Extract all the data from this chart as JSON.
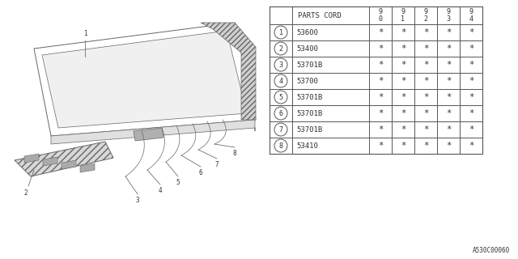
{
  "bg_color": "#ffffff",
  "diagram_code": "A530C00060",
  "table": {
    "header_col": "PARTS CORD",
    "year_cols": [
      "9\n0",
      "9\n1",
      "9\n2",
      "9\n3",
      "9\n4"
    ],
    "rows": [
      {
        "num": 1,
        "part": "53600"
      },
      {
        "num": 2,
        "part": "53400"
      },
      {
        "num": 3,
        "part": "53701B"
      },
      {
        "num": 4,
        "part": "53700"
      },
      {
        "num": 5,
        "part": "53701B"
      },
      {
        "num": 6,
        "part": "53701B"
      },
      {
        "num": 7,
        "part": "53701B"
      },
      {
        "num": 8,
        "part": "53410"
      }
    ]
  },
  "line_color": "#555555",
  "text_color": "#333333",
  "font_size": 6.5
}
